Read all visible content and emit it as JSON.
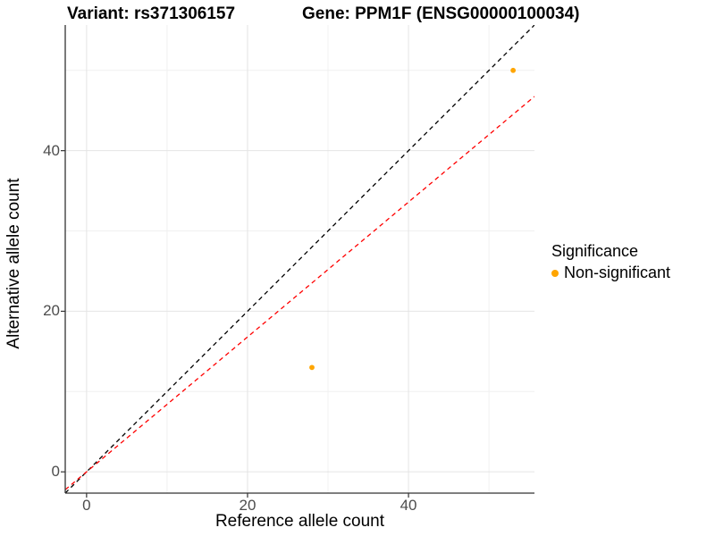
{
  "title": {
    "left": "Variant: rs371306157",
    "right": "Gene: PPM1F (ENSG00000100034)"
  },
  "chart_data": {
    "type": "scatter",
    "title": "Variant: rs371306157   Gene: PPM1F (ENSG00000100034)",
    "xlabel": "Reference allele count",
    "ylabel": "Alternative allele count",
    "xlim": [
      -2.65,
      55.65
    ],
    "ylim": [
      -2.65,
      55.65
    ],
    "x_ticks": [
      0,
      20,
      40
    ],
    "y_ticks": [
      0,
      20,
      40
    ],
    "x_minor_ticks": [
      10,
      30,
      50
    ],
    "y_minor_ticks": [
      10,
      30,
      50
    ],
    "grid": true,
    "series": [
      {
        "name": "Non-significant",
        "color": "#FFA500",
        "points": [
          {
            "x": 28,
            "y": 13
          },
          {
            "x": 53,
            "y": 50
          }
        ]
      }
    ],
    "lines": [
      {
        "name": "identity",
        "slope": 1,
        "intercept": 0,
        "color": "#000000",
        "style": "dashed"
      },
      {
        "name": "expected-ratio",
        "slope": 0.84,
        "intercept": 0,
        "color": "#FF0000",
        "style": "dashed"
      }
    ],
    "legend": {
      "title": "Significance",
      "position": "right",
      "items": [
        {
          "label": "Non-significant",
          "color": "#FFA500"
        }
      ]
    },
    "style_colors": {
      "axis_line": "#333333",
      "tick_text": "#4d4d4d",
      "grid_major": "#e4e4e4",
      "grid_minor": "#f0f0f0"
    }
  }
}
